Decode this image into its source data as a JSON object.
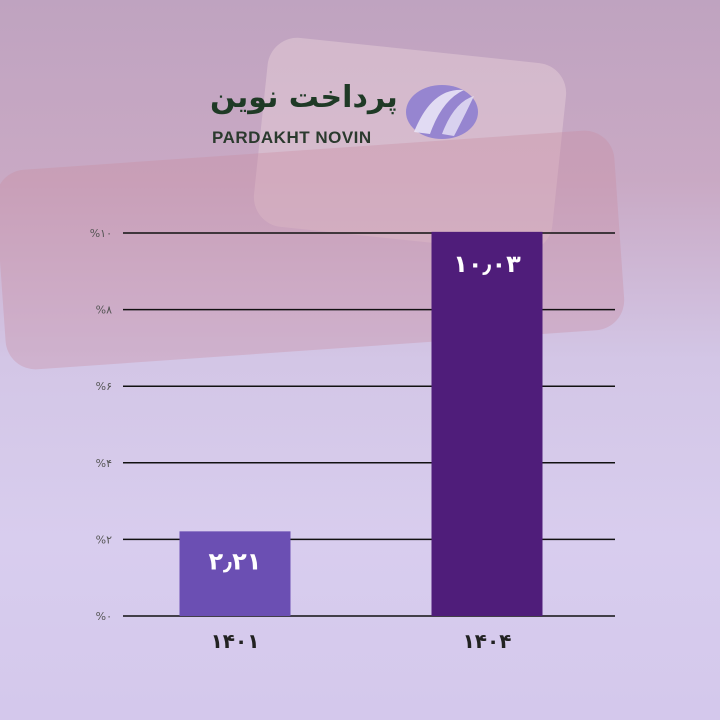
{
  "logo": {
    "text_fa": "پرداخت نوین",
    "text_en": "PARDAKHT NOVIN"
  },
  "chart_data": {
    "type": "bar",
    "categories": [
      "۱۴۰۱",
      "۱۴۰۴"
    ],
    "values": [
      2.21,
      10.03
    ],
    "data_labels": [
      "۲٫۲۱",
      "۱۰٫۰۳"
    ],
    "colors": [
      "#6b4fb3",
      "#4f1d7a"
    ],
    "ylim": [
      0,
      10
    ],
    "yticks": [
      0,
      2,
      4,
      6,
      8,
      10
    ],
    "ytick_labels": [
      "%۰",
      "%۲",
      "%۴",
      "%۶",
      "%۸",
      "%۱۰"
    ],
    "grid": true,
    "title": "",
    "xlabel": "",
    "ylabel": ""
  }
}
